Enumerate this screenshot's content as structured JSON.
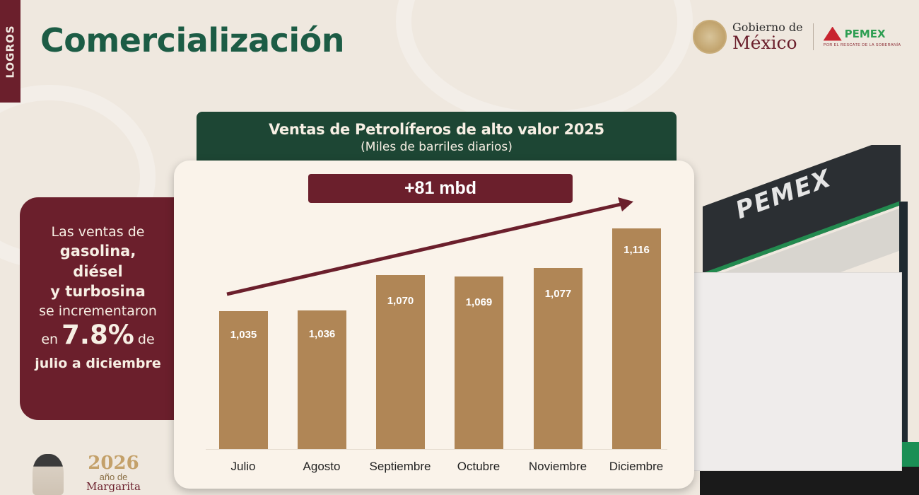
{
  "side_tab": {
    "label": "LOGROS"
  },
  "header": {
    "title": "Comercialización"
  },
  "logos": {
    "gobierno_line1": "Gobierno de",
    "gobierno_line2": "México",
    "pemex_name": "PEMEX",
    "pemex_tagline": "POR EL RESCATE DE LA SOBERANÍA"
  },
  "callout": {
    "line1": "Las ventas de",
    "line2": "gasolina,",
    "line3": "diésel",
    "line4": "y turbosina",
    "line5": "se incrementaron",
    "line6_pre": "en",
    "line6_value": "7.8%",
    "line6_post": "de",
    "line7": "julio a diciembre"
  },
  "chart_header": {
    "title": "Ventas de Petrolíferos de alto valor 2025",
    "subtitle": "(Miles de barriles diarios)"
  },
  "badge": {
    "label": "+81 mbd"
  },
  "photo": {
    "sign_text": "PEMEX"
  },
  "footer_logo": {
    "year": "2026",
    "line2": "año de",
    "line3": "Margarita"
  },
  "colors": {
    "bar": "#b08656",
    "maroon": "#6b1f2c",
    "green": "#1d4634",
    "title_green": "#1c5c45"
  },
  "chart_data": {
    "type": "bar",
    "title": "Ventas de Petrolíferos de alto valor 2025",
    "subtitle": "(Miles de barriles diarios)",
    "xlabel": "",
    "ylabel": "Miles de barriles diarios",
    "categories": [
      "Julio",
      "Agosto",
      "Septiembre",
      "Octubre",
      "Noviembre",
      "Diciembre"
    ],
    "values": [
      1035,
      1036,
      1070,
      1069,
      1077,
      1116
    ],
    "value_labels": [
      "1,035",
      "1,036",
      "1,070",
      "1,069",
      "1,077",
      "1,116"
    ],
    "annotations": [
      "+81 mbd",
      "upward trend arrow from Julio to Diciembre"
    ],
    "grid": false,
    "legend": null
  }
}
